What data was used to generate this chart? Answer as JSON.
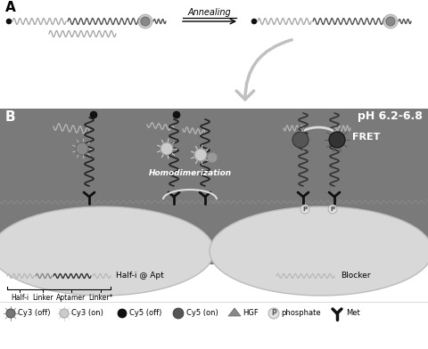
{
  "fig_width": 4.8,
  "fig_height": 3.92,
  "dpi": 100,
  "bg_color": "#ffffff",
  "panel_b_color": "#7a7a7a",
  "cell_color": "#d0d0d0",
  "label_A": "A",
  "label_B": "B",
  "ph_label": "pH 6.2-6.8",
  "annealing_label": "Annealing",
  "fret_label": "FRET",
  "homodimerization_label": "Homodimerization",
  "half_i_label": "Half-i",
  "linker_label": "Linker",
  "aptamer_label": "Aptamer",
  "linker2_label": "Linker*",
  "halfi_apt_label": "Half-i @ Apt",
  "blocker_label": "Blocker"
}
